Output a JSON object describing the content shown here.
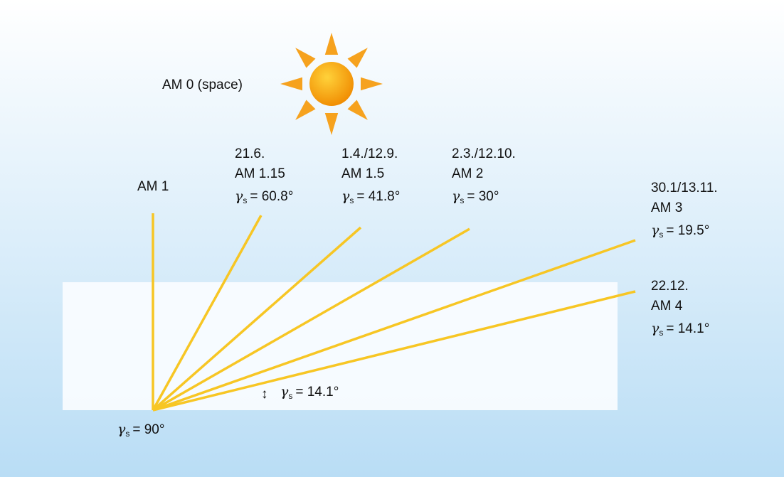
{
  "sun_label": "AM 0 (space)",
  "symbol": "γ",
  "subscript": "s",
  "rays": [
    {
      "am": "AM 1"
    },
    {
      "date": "21.6.",
      "am": "AM 1.15",
      "angle": "= 60.8°"
    },
    {
      "date": "1.4./12.9.",
      "am": "AM 1.5",
      "angle": "= 41.8°"
    },
    {
      "date": "2.3./12.10.",
      "am": "AM 2",
      "angle": "= 30°"
    },
    {
      "date": "30.1/13.11.",
      "am": "AM 3",
      "angle": "= 19.5°"
    },
    {
      "date": "22.12.",
      "am": "AM 4",
      "angle": "= 14.1°"
    }
  ],
  "origin_angle": "= 90°",
  "horizon_angle": "= 14.1°"
}
